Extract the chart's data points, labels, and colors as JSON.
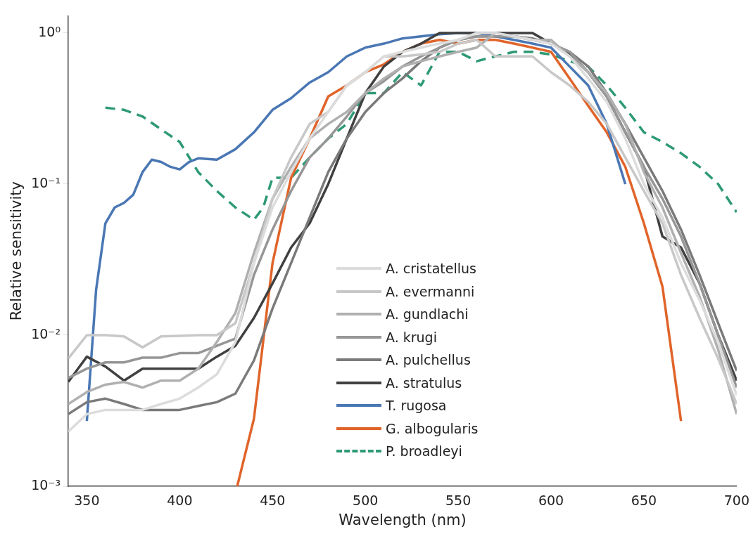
{
  "chart_data": {
    "type": "line",
    "xlabel": "Wavelength (nm)",
    "ylabel": "Relative sensitivity",
    "log": "y",
    "xlim": [
      340,
      700
    ],
    "xticks": [
      350,
      400,
      450,
      500,
      550,
      600,
      650,
      700
    ],
    "ylim": [
      0.001,
      1.3
    ],
    "yticks": [
      {
        "value": 0.001,
        "label": "10⁻³"
      },
      {
        "value": 0.01,
        "label": "10⁻²"
      },
      {
        "value": 0.1,
        "label": "10⁻¹"
      },
      {
        "value": 1,
        "label": "10⁰"
      }
    ],
    "grid": false,
    "legend": "bottom",
    "marker": "none",
    "series": [
      {
        "name": "A. cristatellus",
        "color": "#dcdcdc",
        "x": [
          340,
          350,
          360,
          370,
          380,
          390,
          400,
          410,
          420,
          430,
          440,
          450,
          460,
          470,
          480,
          490,
          500,
          510,
          520,
          530,
          540,
          550,
          560,
          570,
          580,
          590,
          600,
          610,
          620,
          630,
          640,
          650,
          660,
          670,
          680,
          690,
          700
        ],
        "values": [
          0.0023,
          0.003,
          0.0032,
          0.0032,
          0.0032,
          0.0035,
          0.0038,
          0.0045,
          0.0055,
          0.009,
          0.03,
          0.07,
          0.12,
          0.2,
          0.3,
          0.45,
          0.55,
          0.7,
          0.75,
          0.8,
          0.85,
          0.9,
          1.0,
          1.0,
          0.95,
          0.9,
          0.85,
          0.7,
          0.5,
          0.35,
          0.2,
          0.1,
          0.06,
          0.03,
          0.017,
          0.009,
          0.004
        ]
      },
      {
        "name": "A. evermanni",
        "color": "#c8c8c8",
        "x": [
          340,
          350,
          360,
          370,
          380,
          390,
          400,
          410,
          420,
          430,
          440,
          450,
          460,
          470,
          480,
          490,
          500,
          510,
          520,
          530,
          540,
          550,
          560,
          570,
          580,
          590,
          600,
          610,
          620,
          630,
          640,
          650,
          660,
          670,
          680,
          690,
          700
        ],
        "values": [
          0.007,
          0.01,
          0.01,
          0.0098,
          0.0083,
          0.0098,
          0.0099,
          0.01,
          0.01,
          0.012,
          0.03,
          0.08,
          0.15,
          0.25,
          0.3,
          0.45,
          0.55,
          0.7,
          0.7,
          0.72,
          0.75,
          0.85,
          0.9,
          0.7,
          0.7,
          0.7,
          0.55,
          0.45,
          0.35,
          0.25,
          0.15,
          0.09,
          0.055,
          0.025,
          0.013,
          0.007,
          0.0035
        ]
      },
      {
        "name": "A. gundlachi",
        "color": "#b0b0b0",
        "x": [
          340,
          350,
          360,
          370,
          380,
          390,
          400,
          410,
          420,
          430,
          440,
          450,
          460,
          470,
          480,
          490,
          500,
          510,
          520,
          530,
          540,
          550,
          560,
          570,
          580,
          590,
          600,
          610,
          620,
          630,
          640,
          650,
          660,
          670,
          680,
          690,
          700
        ],
        "values": [
          0.0035,
          0.0042,
          0.0047,
          0.0049,
          0.0045,
          0.005,
          0.005,
          0.006,
          0.009,
          0.014,
          0.035,
          0.08,
          0.13,
          0.2,
          0.25,
          0.3,
          0.4,
          0.5,
          0.6,
          0.65,
          0.7,
          0.75,
          0.8,
          1.0,
          0.95,
          0.9,
          0.9,
          0.7,
          0.55,
          0.4,
          0.25,
          0.12,
          0.07,
          0.035,
          0.018,
          0.008,
          0.003
        ]
      },
      {
        "name": "A. krugi",
        "color": "#969696",
        "x": [
          340,
          350,
          360,
          370,
          380,
          390,
          400,
          410,
          420,
          430,
          440,
          450,
          460,
          470,
          480,
          490,
          500,
          510,
          520,
          530,
          540,
          550,
          560,
          570,
          580,
          590,
          600,
          610,
          620,
          630,
          640,
          650,
          660,
          670,
          680,
          690,
          700
        ],
        "values": [
          0.0052,
          0.006,
          0.0066,
          0.0066,
          0.0071,
          0.0071,
          0.0076,
          0.0076,
          0.0085,
          0.0095,
          0.025,
          0.05,
          0.09,
          0.15,
          0.2,
          0.28,
          0.4,
          0.48,
          0.6,
          0.7,
          0.8,
          0.9,
          0.95,
          0.95,
          0.95,
          0.9,
          0.85,
          0.75,
          0.55,
          0.38,
          0.22,
          0.13,
          0.08,
          0.045,
          0.022,
          0.01,
          0.0045
        ]
      },
      {
        "name": "A. pulchellus",
        "color": "#7a7a7a",
        "x": [
          340,
          350,
          360,
          370,
          380,
          390,
          400,
          410,
          420,
          430,
          440,
          450,
          460,
          470,
          480,
          490,
          500,
          510,
          520,
          530,
          540,
          550,
          560,
          570,
          580,
          590,
          600,
          610,
          620,
          630,
          640,
          650,
          660,
          670,
          680,
          690,
          700
        ],
        "values": [
          0.003,
          0.0036,
          0.0038,
          0.0035,
          0.0032,
          0.0032,
          0.0032,
          0.0034,
          0.0036,
          0.0041,
          0.0068,
          0.015,
          0.03,
          0.06,
          0.12,
          0.2,
          0.3,
          0.4,
          0.5,
          0.65,
          0.8,
          0.9,
          0.95,
          0.95,
          0.95,
          0.92,
          0.85,
          0.75,
          0.6,
          0.4,
          0.25,
          0.15,
          0.09,
          0.05,
          0.025,
          0.012,
          0.0058
        ]
      },
      {
        "name": "A. stratulus",
        "color": "#404040",
        "x": [
          340,
          350,
          360,
          370,
          380,
          390,
          400,
          410,
          420,
          430,
          440,
          450,
          460,
          470,
          480,
          490,
          500,
          510,
          520,
          530,
          540,
          550,
          560,
          570,
          580,
          590,
          600,
          610,
          620,
          630,
          640,
          650,
          660,
          670,
          680,
          690,
          700
        ],
        "values": [
          0.0049,
          0.0072,
          0.0062,
          0.005,
          0.006,
          0.006,
          0.006,
          0.006,
          0.0072,
          0.0085,
          0.013,
          0.022,
          0.038,
          0.055,
          0.1,
          0.2,
          0.4,
          0.6,
          0.75,
          0.85,
          1.0,
          1.0,
          1.0,
          1.0,
          1.0,
          1.0,
          0.85,
          0.72,
          0.55,
          0.38,
          0.22,
          0.13,
          0.045,
          0.038,
          0.022,
          0.01,
          0.005
        ]
      },
      {
        "name": "T. rugosa",
        "color": "#4a77b4",
        "x": [
          350,
          355,
          360,
          365,
          370,
          375,
          380,
          385,
          390,
          395,
          400,
          405,
          410,
          420,
          430,
          440,
          450,
          460,
          470,
          480,
          490,
          500,
          510,
          520,
          530,
          540,
          550,
          560,
          570,
          580,
          590,
          600,
          610,
          620,
          630,
          640
        ],
        "values": [
          0.0027,
          0.02,
          0.055,
          0.07,
          0.075,
          0.085,
          0.12,
          0.145,
          0.14,
          0.13,
          0.125,
          0.14,
          0.148,
          0.145,
          0.17,
          0.22,
          0.31,
          0.37,
          0.47,
          0.55,
          0.7,
          0.8,
          0.85,
          0.92,
          0.95,
          0.98,
          1.0,
          1.0,
          0.95,
          0.9,
          0.85,
          0.8,
          0.6,
          0.45,
          0.25,
          0.1
        ]
      },
      {
        "name": "G. albogularis",
        "color": "#e0642a",
        "x": [
          431,
          440,
          450,
          460,
          470,
          480,
          490,
          500,
          510,
          520,
          530,
          540,
          550,
          560,
          570,
          580,
          590,
          600,
          610,
          620,
          630,
          640,
          650,
          660,
          670
        ],
        "values": [
          0.001,
          0.0028,
          0.03,
          0.11,
          0.2,
          0.38,
          0.45,
          0.55,
          0.62,
          0.75,
          0.85,
          0.9,
          0.85,
          0.9,
          0.9,
          0.85,
          0.8,
          0.75,
          0.5,
          0.33,
          0.22,
          0.13,
          0.055,
          0.021,
          0.0027
        ]
      },
      {
        "name": "P. broadleyi",
        "color": "#2e9a74",
        "line_style": "dashed",
        "x": [
          360,
          370,
          380,
          390,
          400,
          410,
          420,
          430,
          440,
          445,
          450,
          460,
          470,
          480,
          490,
          500,
          510,
          520,
          530,
          540,
          550,
          560,
          570,
          580,
          590,
          600,
          610,
          620,
          630,
          640,
          650,
          660,
          670,
          680,
          690,
          700
        ],
        "values": [
          0.32,
          0.31,
          0.28,
          0.23,
          0.19,
          0.12,
          0.09,
          0.07,
          0.058,
          0.07,
          0.11,
          0.11,
          0.15,
          0.2,
          0.25,
          0.4,
          0.4,
          0.55,
          0.45,
          0.75,
          0.75,
          0.65,
          0.7,
          0.75,
          0.75,
          0.72,
          0.65,
          0.6,
          0.45,
          0.32,
          0.22,
          0.19,
          0.16,
          0.13,
          0.1,
          0.065
        ]
      }
    ]
  }
}
